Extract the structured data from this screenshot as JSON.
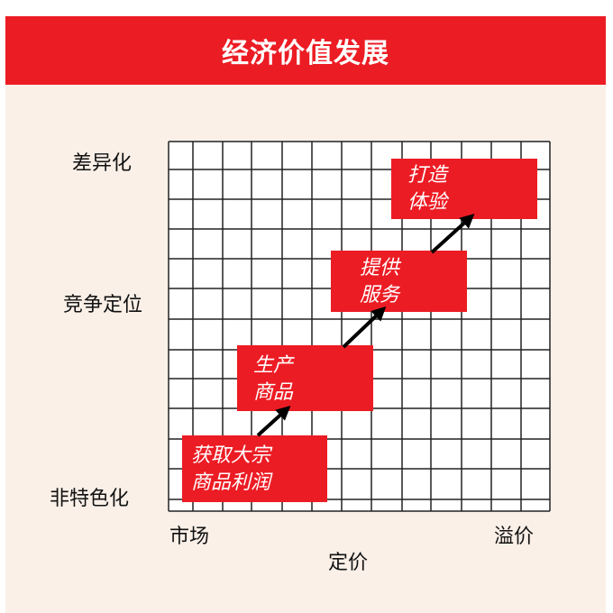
{
  "title": "经济价值发展",
  "y_axis": {
    "labels": [
      "差异化",
      "竞争定位",
      "非特色化"
    ]
  },
  "x_axis": {
    "title": "定价",
    "labels": [
      "市场",
      "溢价"
    ]
  },
  "stages": [
    {
      "line1": "获取大宗",
      "line2": "商品利润"
    },
    {
      "line1": "生产",
      "line2": "商品"
    },
    {
      "line1": "提供",
      "line2": "服务"
    },
    {
      "line1": "打造",
      "line2": "体验"
    }
  ],
  "colors": {
    "accent": "#ec1c24",
    "grid": "#222222",
    "background": "#faf0e8"
  }
}
